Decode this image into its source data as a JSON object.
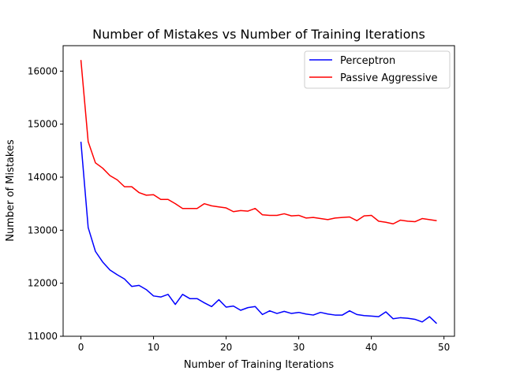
{
  "chart_data": {
    "type": "line",
    "title": "Number of Mistakes vs Number of Training Iterations",
    "xlabel": "Number of Training Iterations",
    "ylabel": "Number of Mistakes",
    "xlim": [
      -2.45,
      51.45
    ],
    "ylim": [
      11000,
      16480
    ],
    "xticks": [
      0,
      10,
      20,
      30,
      40,
      50
    ],
    "xtick_labels": [
      "0",
      "10",
      "20",
      "30",
      "40",
      "50"
    ],
    "yticks": [
      11000,
      12000,
      13000,
      14000,
      15000,
      16000
    ],
    "ytick_labels": [
      "11000",
      "12000",
      "13000",
      "14000",
      "15000",
      "16000"
    ],
    "grid": false,
    "legend_position": "top-right",
    "x": [
      0,
      1,
      2,
      3,
      4,
      5,
      6,
      7,
      8,
      9,
      10,
      11,
      12,
      13,
      14,
      15,
      16,
      17,
      18,
      19,
      20,
      21,
      22,
      23,
      24,
      25,
      26,
      27,
      28,
      29,
      30,
      31,
      32,
      33,
      34,
      35,
      36,
      37,
      38,
      39,
      40,
      41,
      42,
      43,
      44,
      45,
      46,
      47,
      48,
      49
    ],
    "series": [
      {
        "name": "Perceptron",
        "color": "#0000ff",
        "values": [
          14670,
          13050,
          12600,
          12400,
          12250,
          12160,
          12080,
          11940,
          11960,
          11880,
          11760,
          11740,
          11790,
          11600,
          11790,
          11710,
          11710,
          11630,
          11560,
          11690,
          11550,
          11570,
          11490,
          11540,
          11560,
          11410,
          11480,
          11430,
          11470,
          11430,
          11450,
          11420,
          11400,
          11450,
          11420,
          11400,
          11400,
          11480,
          11410,
          11390,
          11380,
          11370,
          11460,
          11330,
          11350,
          11340,
          11320,
          11270,
          11370,
          11240
        ]
      },
      {
        "name": "Passive Aggressive",
        "color": "#ff0000",
        "values": [
          16210,
          14670,
          14270,
          14170,
          14030,
          13950,
          13820,
          13820,
          13710,
          13660,
          13670,
          13580,
          13580,
          13500,
          13410,
          13410,
          13410,
          13500,
          13460,
          13440,
          13420,
          13350,
          13370,
          13360,
          13410,
          13290,
          13280,
          13280,
          13310,
          13270,
          13280,
          13230,
          13240,
          13220,
          13200,
          13230,
          13240,
          13250,
          13180,
          13270,
          13280,
          13170,
          13150,
          13120,
          13190,
          13170,
          13160,
          13220,
          13200,
          13180
        ]
      }
    ]
  }
}
